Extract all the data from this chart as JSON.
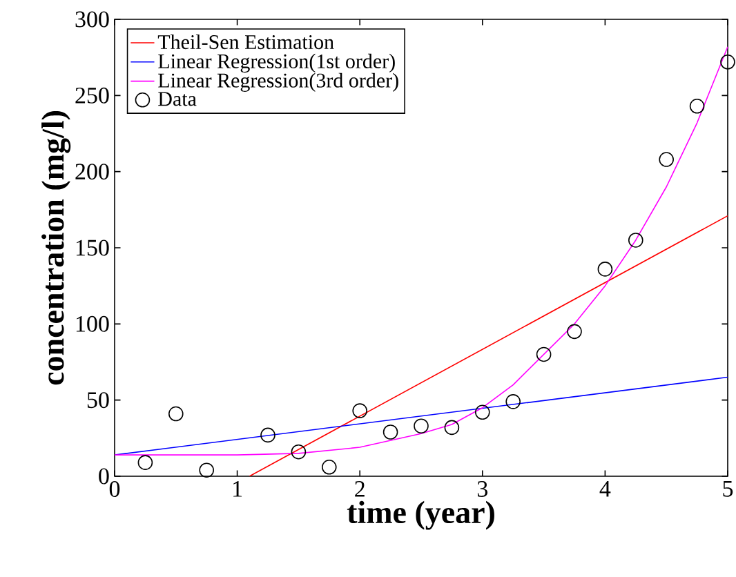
{
  "chart_data": {
    "type": "line",
    "xlabel": "time (year)",
    "ylabel": "concentration (mg/l)",
    "xlim": [
      0,
      5
    ],
    "ylim": [
      0,
      300
    ],
    "xticks": [
      0,
      1,
      2,
      3,
      4,
      5
    ],
    "yticks": [
      0,
      50,
      100,
      150,
      200,
      250,
      300
    ],
    "legend": "top left",
    "grid": false,
    "series": [
      {
        "name": "Theil-Sen Estimation",
        "color": "#ff0000",
        "marker": "none",
        "x": [
          1.1,
          5
        ],
        "values": [
          0,
          171
        ]
      },
      {
        "name": "Linear Regression(1st order)",
        "color": "#0000ff",
        "marker": "none",
        "x": [
          0,
          5
        ],
        "values": [
          14,
          65
        ]
      },
      {
        "name": "Linear Regression(3rd order)",
        "color": "#ff00ff",
        "marker": "none",
        "x": [
          0,
          0.5,
          1,
          1.5,
          2,
          2.5,
          2.75,
          3,
          3.25,
          3.5,
          3.75,
          4,
          4.25,
          4.5,
          4.75,
          5
        ],
        "values": [
          14,
          14,
          14,
          15,
          19,
          28,
          34,
          45,
          60,
          80,
          100,
          125,
          155,
          190,
          232,
          282
        ]
      },
      {
        "name": "Data",
        "color": "#000000",
        "type": "scatter",
        "marker": "circle",
        "x": [
          0.25,
          0.5,
          0.75,
          1.25,
          1.5,
          1.75,
          2,
          2.25,
          2.5,
          2.75,
          3,
          3.25,
          3.5,
          3.75,
          4,
          4.25,
          4.5,
          4.75,
          5
        ],
        "values": [
          9,
          41,
          4,
          27,
          16,
          6,
          43,
          29,
          33,
          32,
          42,
          49,
          80,
          95,
          136,
          155,
          208,
          243,
          272
        ]
      }
    ]
  }
}
